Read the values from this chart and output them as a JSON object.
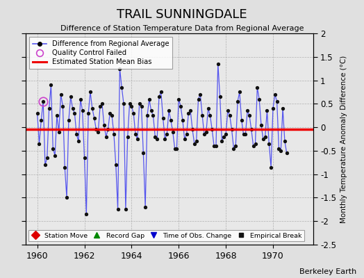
{
  "title": "TRAIL SUNNINGDALE",
  "subtitle": "Difference of Station Temperature Data from Regional Average",
  "credit": "Berkeley Earth",
  "ylabel_right": "Monthly Temperature Anomaly Difference (°C)",
  "xlim": [
    1959.5,
    1971.7
  ],
  "ylim": [
    -2.5,
    2.0
  ],
  "yticks": [
    -2.5,
    -2.0,
    -1.5,
    -1.0,
    -0.5,
    0.0,
    0.5,
    1.0,
    1.5,
    2.0
  ],
  "ytick_labels": [
    "-2.5",
    "-2",
    "-1.5",
    "-1",
    "-0.5",
    "0",
    "0.5",
    "1",
    "1.5",
    "2"
  ],
  "xticks": [
    1960,
    1962,
    1964,
    1966,
    1968,
    1970
  ],
  "bias_line_y": -0.05,
  "line_color": "#5555ee",
  "marker_color": "#111111",
  "bias_color": "#ee0000",
  "qc_fail_indices": [
    3
  ],
  "background_color": "#e0e0e0",
  "plot_bg_color": "#e8e8e8",
  "values": [
    0.3,
    -0.35,
    0.15,
    0.55,
    -0.8,
    -0.65,
    0.4,
    0.9,
    -0.45,
    -0.6,
    0.25,
    -0.1,
    0.7,
    0.45,
    -0.85,
    -1.5,
    0.15,
    0.65,
    0.4,
    0.3,
    -0.15,
    -0.3,
    0.6,
    0.35,
    -0.65,
    -1.85,
    0.3,
    0.75,
    0.4,
    0.2,
    -0.05,
    -0.1,
    0.45,
    0.5,
    0.05,
    -0.2,
    -0.05,
    0.3,
    0.25,
    -0.15,
    -0.8,
    -1.75,
    1.25,
    0.85,
    0.5,
    -1.75,
    -0.2,
    0.5,
    0.45,
    0.3,
    -0.15,
    -0.25,
    0.5,
    0.45,
    -0.55,
    -1.7,
    0.25,
    0.6,
    0.35,
    0.25,
    -0.2,
    -0.25,
    0.65,
    0.75,
    0.2,
    -0.25,
    -0.15,
    0.35,
    0.15,
    -0.1,
    -0.45,
    -0.45,
    0.6,
    0.45,
    0.15,
    -0.25,
    -0.15,
    0.3,
    0.35,
    -0.05,
    -0.35,
    -0.3,
    0.6,
    0.7,
    0.25,
    -0.15,
    -0.1,
    0.4,
    0.25,
    -0.05,
    -0.4,
    -0.4,
    1.35,
    0.65,
    -0.3,
    -0.2,
    -0.15,
    0.35,
    0.25,
    -0.05,
    -0.45,
    -0.4,
    0.55,
    0.75,
    0.15,
    -0.15,
    -0.15,
    0.35,
    0.25,
    -0.05,
    -0.4,
    -0.35,
    0.85,
    0.6,
    0.05,
    -0.25,
    -0.2,
    0.35,
    -0.35,
    -0.85,
    0.4,
    0.7,
    0.55,
    -0.45,
    -0.5,
    0.4,
    -0.3,
    -0.55
  ],
  "start_year": 1960.0,
  "month_step": 0.083333
}
